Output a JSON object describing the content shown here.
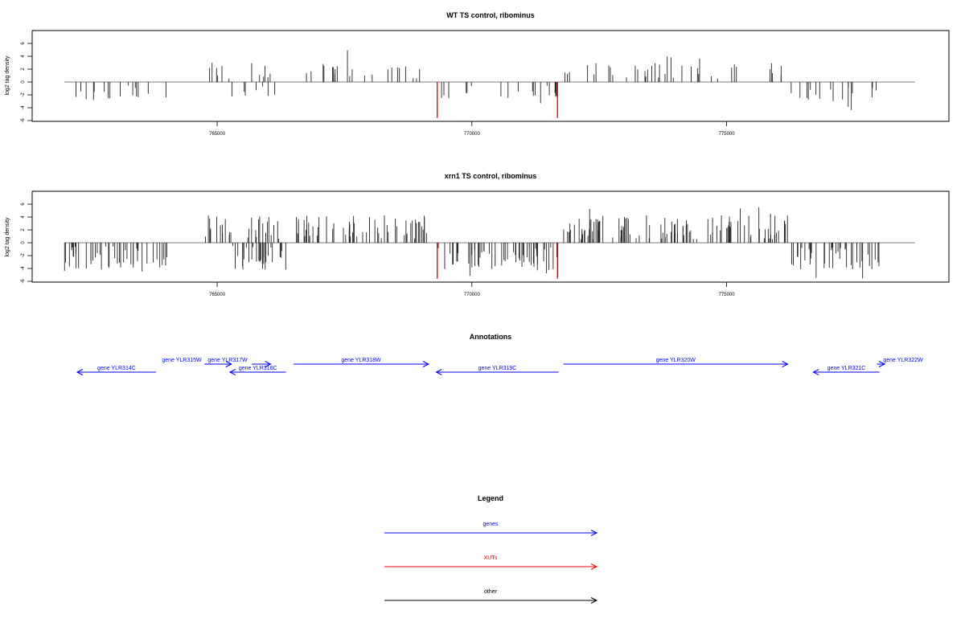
{
  "colors": {
    "gene": "#0000ff",
    "xut": "#ff0000",
    "other": "#000000",
    "track": "#000000"
  },
  "chart_data": [
    {
      "type": "bar",
      "title": "WT TS control, ribominus",
      "ylabel": "log2 tag density",
      "xlim": [
        762000,
        778700
      ],
      "ylim": [
        -6,
        8
      ],
      "xticks": [
        "765000",
        "770000",
        "775000"
      ],
      "yticks": [
        "-6",
        "-4",
        "-2",
        "0",
        "2",
        "4",
        "6"
      ],
      "highlight_x": [
        769320,
        771680
      ],
      "density": 1
    },
    {
      "type": "bar",
      "title": "xrn1 TS control, ribominus",
      "ylabel": "log2 tag density",
      "xlim": [
        762000,
        778700
      ],
      "ylim": [
        -6,
        8
      ],
      "xticks": [
        "765000",
        "770000",
        "775000"
      ],
      "yticks": [
        "-6",
        "-4",
        "-2",
        "0",
        "2",
        "4",
        "6"
      ],
      "highlight_x": [
        769320,
        771680
      ],
      "density": 3
    }
  ],
  "annotations": {
    "title": "Annotations",
    "features": [
      {
        "label": "gene YLR314C",
        "start": 763800,
        "end": 762250,
        "kind": "gene",
        "row": 2
      },
      {
        "label": "gene YLR315W",
        "start": 764750,
        "end": 765280,
        "kind": "gene",
        "row": 1
      },
      {
        "label": "gene YLR317W",
        "start": 765680,
        "end": 766050,
        "kind": "gene",
        "row": 1
      },
      {
        "label": "gene YLR316C",
        "start": 766350,
        "end": 765250,
        "kind": "gene",
        "row": 2
      },
      {
        "label": "gene YLR318W",
        "start": 766500,
        "end": 769150,
        "kind": "gene",
        "row": 1
      },
      {
        "label": "gene YLR319C",
        "start": 771700,
        "end": 769300,
        "kind": "gene",
        "row": 2
      },
      {
        "label": "gene YLR320W",
        "start": 771800,
        "end": 776200,
        "kind": "gene",
        "row": 1
      },
      {
        "label": "gene YLR321C",
        "start": 778000,
        "end": 776700,
        "kind": "gene",
        "row": 2
      },
      {
        "label": "gene YLR322W",
        "start": 777950,
        "end": 778100,
        "kind": "gene",
        "row": 1
      }
    ]
  },
  "legend": {
    "title": "Legend",
    "items": [
      {
        "label": "genes",
        "kind": "gene"
      },
      {
        "label": "XUTs",
        "kind": "xut"
      },
      {
        "label": "other",
        "kind": "other"
      }
    ]
  }
}
